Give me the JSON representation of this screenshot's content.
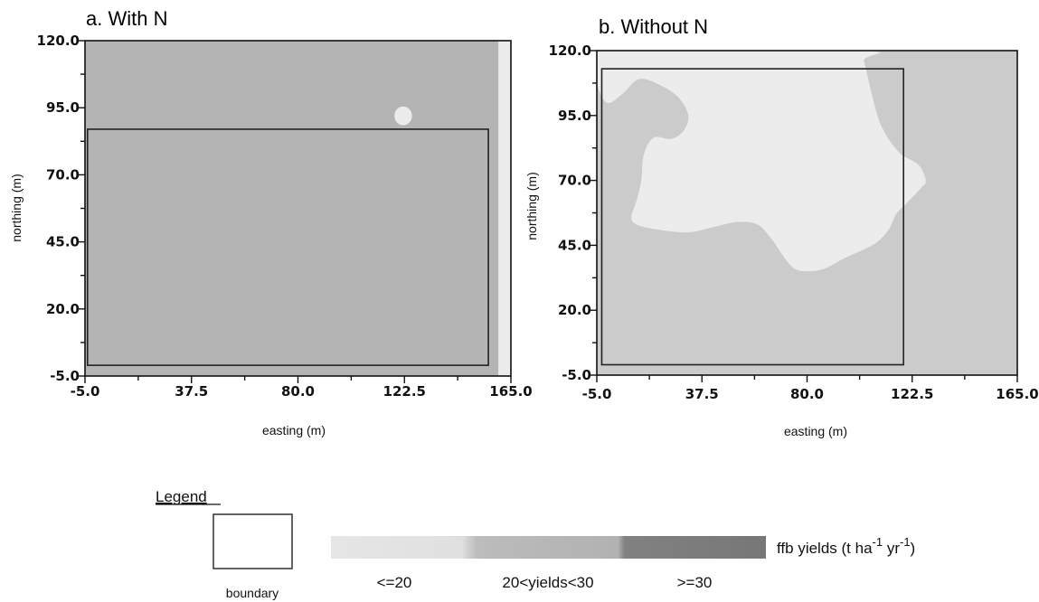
{
  "chart_data": [
    {
      "type": "heatmap",
      "title": "a. With N",
      "xlabel": "easting (m)",
      "ylabel": "northing (m)",
      "xlim": [
        -5.0,
        165.0
      ],
      "ylim": [
        -5.0,
        120.0
      ],
      "x_ticks": [
        "-5.0",
        "37.5",
        "80.0",
        "122.5",
        "165.0"
      ],
      "y_ticks": [
        "-5.0",
        "20.0",
        "45.0",
        "70.0",
        "95.0",
        "120.0"
      ],
      "background_class": "20<yields<30",
      "regions": [
        {
          "class": "<=20",
          "shape": "strip",
          "x": [
            160.0,
            165.0
          ],
          "y": [
            -5.0,
            120.0
          ]
        },
        {
          "class": "<=20",
          "shape": "spot",
          "center": [
            122.0,
            92.0
          ],
          "radius": 3.5
        }
      ],
      "boundary": {
        "x": [
          -4.0,
          156.0
        ],
        "y": [
          -1.0,
          87.0
        ]
      }
    },
    {
      "type": "heatmap",
      "title": "b. Without N",
      "xlabel": "easting (m)",
      "ylabel": "northing (m)",
      "xlim": [
        -5.0,
        165.0
      ],
      "ylim": [
        -5.0,
        120.0
      ],
      "x_ticks": [
        "-5.0",
        "37.5",
        "80.0",
        "122.5",
        "165.0"
      ],
      "y_ticks": [
        "-5.0",
        "20.0",
        "45.0",
        "70.0",
        "95.0",
        "120.0"
      ],
      "background_class": "20<yields<30",
      "regions": [
        {
          "class": "<=20",
          "shape": "polygon",
          "points": [
            [
              -5.0,
              108.0
            ],
            [
              -1.0,
              100.0
            ],
            [
              5.0,
              103.0
            ],
            [
              12.0,
              109.0
            ],
            [
              20.0,
              107.0
            ],
            [
              28.0,
              102.0
            ],
            [
              32.0,
              95.0
            ],
            [
              30.0,
              89.0
            ],
            [
              25.0,
              86.0
            ],
            [
              18.0,
              86.5
            ],
            [
              14.0,
              80.0
            ],
            [
              13.0,
              70.0
            ],
            [
              11.0,
              62.0
            ],
            [
              9.0,
              56.0
            ],
            [
              11.0,
              53.0
            ],
            [
              20.0,
              51.0
            ],
            [
              32.0,
              50.0
            ],
            [
              42.0,
              52.0
            ],
            [
              52.0,
              54.0
            ],
            [
              60.0,
              53.0
            ],
            [
              66.0,
              47.0
            ],
            [
              71.0,
              40.0
            ],
            [
              75.0,
              36.0
            ],
            [
              80.0,
              35.0
            ],
            [
              87.0,
              36.0
            ],
            [
              95.0,
              40.0
            ],
            [
              102.0,
              43.0
            ],
            [
              108.0,
              46.0
            ],
            [
              113.0,
              51.0
            ],
            [
              116.0,
              57.0
            ],
            [
              120.0,
              61.0
            ],
            [
              126.0,
              67.0
            ],
            [
              128.0,
              70.0
            ],
            [
              125.0,
              76.0
            ],
            [
              117.0,
              81.0
            ],
            [
              110.0,
              91.0
            ],
            [
              106.0,
              104.0
            ],
            [
              103.0,
              116.0
            ],
            [
              101.0,
              120.0
            ],
            [
              -5.0,
              120.0
            ]
          ]
        }
      ],
      "boundary": {
        "x": [
          -3.0,
          119.0
        ],
        "y": [
          -1.0,
          113.0
        ]
      }
    }
  ],
  "legend": {
    "title": "Legend",
    "boundary_label": "boundary",
    "colorbar_label": "ffb yields (t ha",
    "colorbar_label_sup1": "-1",
    "colorbar_label_mid": " yr",
    "colorbar_label_sup2": "-1",
    "colorbar_label_end": ")",
    "classes": [
      {
        "label": "<=20",
        "color": "#e3e3e3"
      },
      {
        "label": "20<yields<30",
        "color": "#b8b8b8"
      },
      {
        "label": ">=30",
        "color": "#7c7c7c"
      }
    ]
  },
  "colors": {
    "<=20": "#ececec",
    "20<yields<30": "#b4b4b4",
    "20<yields<30_b": "#cbcbcb",
    ">=30": "#7c7c7c"
  }
}
